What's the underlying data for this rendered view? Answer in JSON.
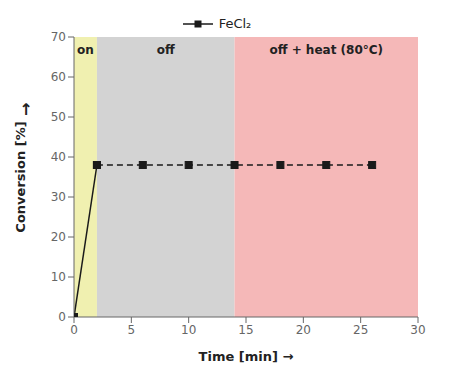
{
  "chart_data": {
    "type": "line",
    "xlabel": "Time [min] →",
    "ylabel": "Conversion [%]",
    "annotations": [
      {
        "text": "↑"
      }
    ],
    "xlim": [
      0,
      30
    ],
    "ylim": [
      0,
      70
    ],
    "xticks": [
      0,
      5,
      10,
      15,
      20,
      25,
      30
    ],
    "yticks": [
      0,
      10,
      20,
      30,
      40,
      50,
      60,
      70
    ],
    "grid": false,
    "legend": "top",
    "regions": [
      {
        "x": [
          0,
          2
        ],
        "color": "#f0f0b0",
        "label": "on"
      },
      {
        "x": [
          2,
          14
        ],
        "color": "#d3d3d3",
        "label": "off"
      },
      {
        "x": [
          14,
          30
        ],
        "color": "#f5b8b8",
        "label": "off + heat (80°C)"
      }
    ],
    "series": [
      {
        "name": "FeCl₂",
        "color": "#1a1a1a",
        "marker": "square",
        "line_style": "solid",
        "x": [
          0,
          2
        ],
        "values": [
          0,
          38
        ]
      },
      {
        "color": "#1a1a1a",
        "marker": "square",
        "line_style": "dashed",
        "x": [
          2,
          6,
          10,
          14,
          18,
          22,
          26
        ],
        "values": [
          38,
          38,
          38,
          38,
          38,
          38,
          38
        ]
      }
    ]
  }
}
